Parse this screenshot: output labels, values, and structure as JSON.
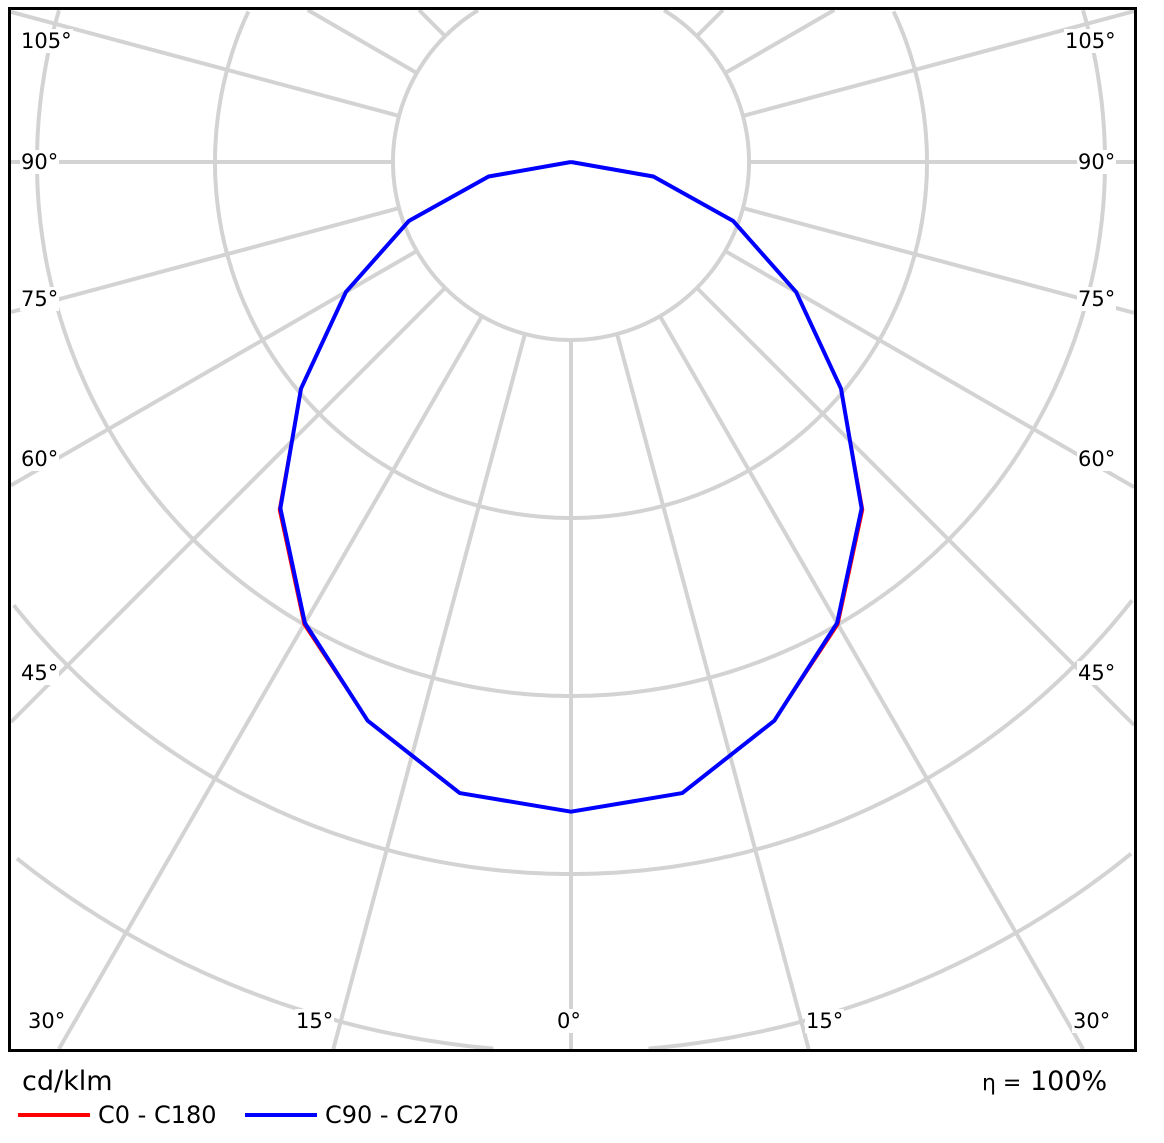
{
  "chart_data": {
    "type": "polar-line",
    "unit_label": "cd/klm",
    "angle_labels": {
      "left": [
        "105°",
        "90°",
        "75°",
        "60°",
        "45°"
      ],
      "right": [
        "105°",
        "90°",
        "75°",
        "60°",
        "45°"
      ],
      "bottom": [
        "30°",
        "15°",
        "0°",
        "15°",
        "30°"
      ]
    },
    "angle_step_deg": 15,
    "ring_step": 100,
    "grid": true,
    "legend_position": "bottom-left",
    "series": [
      {
        "name": "C0 - C180",
        "color": "#ff0000",
        "angles": [
          0,
          10,
          20,
          30,
          40,
          50,
          60,
          70,
          80,
          90
        ],
        "values": [
          365,
          360,
          334,
          300,
          255,
          198,
          146,
          97,
          47,
          0
        ]
      },
      {
        "name": "C90 - C270",
        "color": "#0000ff",
        "angles": [
          0,
          10,
          20,
          30,
          40,
          50,
          60,
          70,
          80,
          90
        ],
        "values": [
          365,
          360,
          334,
          299,
          254,
          198,
          146,
          97,
          47,
          0
        ]
      }
    ],
    "efficiency_symbol": "η =",
    "efficiency": "100%"
  }
}
